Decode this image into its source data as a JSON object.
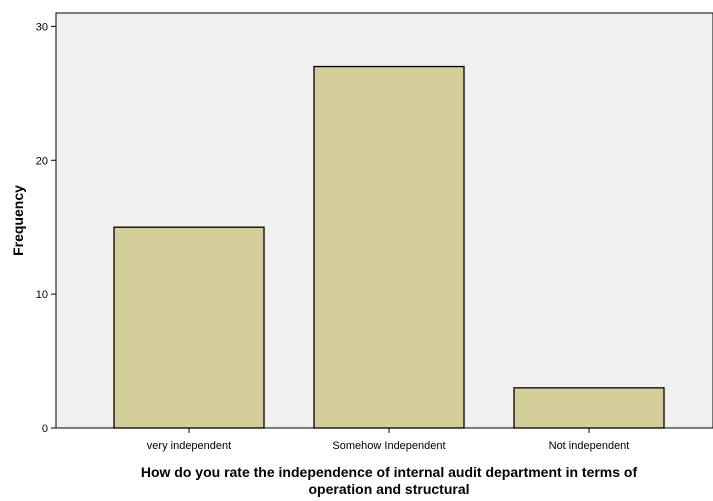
{
  "chart_data": {
    "type": "bar",
    "categories": [
      "very independent",
      "Somehow Independent",
      "Not independent"
    ],
    "values": [
      15,
      27,
      3
    ],
    "title": "",
    "xlabel": "How do you rate the independence of internal audit department in terms of operation and structural",
    "xlabel_lines": [
      "How do you rate the independence of internal audit department in terms of",
      "operation and structural"
    ],
    "ylabel": "Frequency",
    "ylim": [
      0,
      31
    ],
    "yticks": [
      0,
      10,
      20,
      30
    ],
    "grid": false,
    "legend": "none",
    "colors": {
      "bar_fill": "#d3ce98",
      "bar_stroke": "#000000",
      "plot_background": "#f0f0f0",
      "axis": "#000000"
    }
  }
}
